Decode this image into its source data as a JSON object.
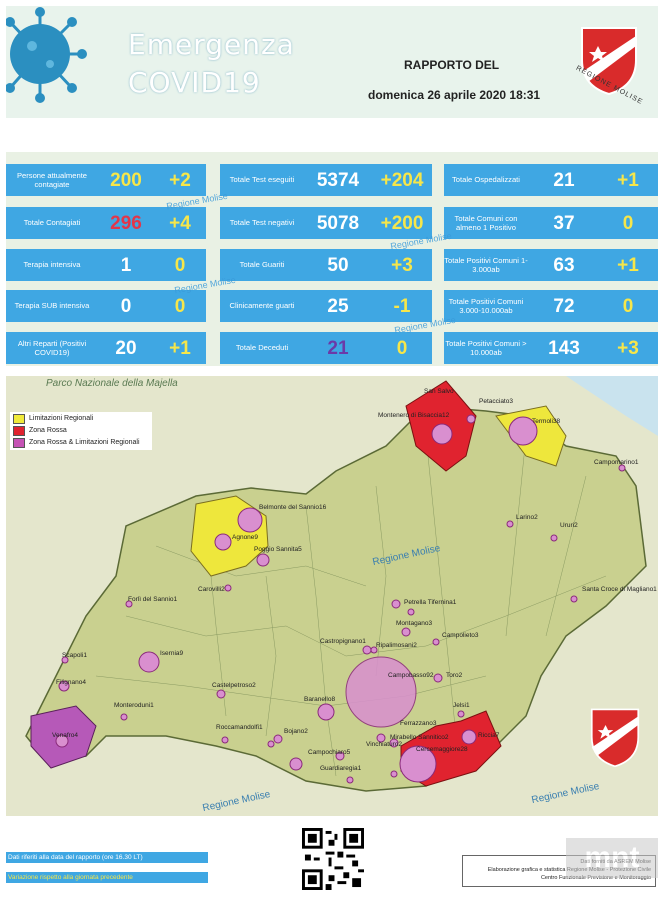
{
  "header": {
    "title_line1": "Emergenza",
    "title_line2": "COVID19",
    "report_label": "RAPPORTO DEL",
    "date": "domenica 26 aprile 2020 18:31",
    "logo_text": "REGIONE MOLISE"
  },
  "stats": {
    "col1": [
      {
        "label": "Persone attualmente contagiate",
        "value": "200",
        "delta": "+2",
        "value_color": "#f6e64a"
      },
      {
        "label": "Totale Contagiati",
        "value": "296",
        "delta": "+4",
        "value_color": "#e2364a"
      },
      {
        "label": "Terapia  intensiva",
        "value": "1",
        "delta": "0",
        "value_color": "#ffffff"
      },
      {
        "label": "Terapia SUB intensiva",
        "value": "0",
        "delta": "0",
        "value_color": "#ffffff"
      },
      {
        "label": "Altri Reparti (Positivi COVID19)",
        "value": "20",
        "delta": "+1",
        "value_color": "#ffffff"
      }
    ],
    "col2": [
      {
        "label": "Totale Test eseguiti",
        "value": "5374",
        "delta": "+204",
        "value_color": "#ffffff"
      },
      {
        "label": "Totale Test negativi",
        "value": "5078",
        "delta": "+200",
        "value_color": "#ffffff"
      },
      {
        "label": "Totale Guariti",
        "value": "50",
        "delta": "+3",
        "value_color": "#ffffff"
      },
      {
        "label": "Clinicamente guarti",
        "value": "25",
        "delta": "-1",
        "value_color": "#ffffff"
      },
      {
        "label": "Totale Deceduti",
        "value": "21",
        "delta": "0",
        "value_color": "#6b3aa8"
      }
    ],
    "col3": [
      {
        "label": "Totale Ospedalizzati",
        "value": "21",
        "delta": "+1",
        "value_color": "#ffffff"
      },
      {
        "label": "Totale Comuni con almeno 1 Positivo",
        "value": "37",
        "delta": "0",
        "value_color": "#ffffff"
      },
      {
        "label": "Totale Positivi Comuni 1-3.000ab",
        "value": "63",
        "delta": "+1",
        "value_color": "#ffffff"
      },
      {
        "label": "Totale Positivi Comuni 3.000-10.000ab",
        "value": "72",
        "delta": "0",
        "value_color": "#ffffff"
      },
      {
        "label": "Totale Positivi Comuni > 10.000ab",
        "value": "143",
        "delta": "+3",
        "value_color": "#ffffff"
      }
    ],
    "watermark": "Regione Molise"
  },
  "map": {
    "park_label": "Parco Nazionale della Majella",
    "legend": [
      {
        "label": "Limitazioni Regionali",
        "color": "#f0ea3a"
      },
      {
        "label": "Zona Rossa",
        "color": "#e0232f"
      },
      {
        "label": "Zona Rossa & Limitazioni Regionali",
        "color": "#c552b5"
      }
    ],
    "watermark": "Regione Molise",
    "places": [
      "San Salvo",
      "Petacciato3",
      "Montenero di Bisaccia12",
      "Termoli38",
      "Campomarino1",
      "Belmonte del Sannio16",
      "Agnone9",
      "Poggio Sannita5",
      "Larino2",
      "Ururi2",
      "Carovilli2",
      "Santa Croce di Magliano1",
      "Forlì del Sannio1",
      "Petrella Tifernina1",
      "Montagano3",
      "Castropignano1",
      "Ripalimosani2",
      "Campolieto3",
      "Scapoli1",
      "Isernia9",
      "Campobasso92",
      "Toro2",
      "Filignano4",
      "Castelpetroso2",
      "Baranello8",
      "Monteroduni1",
      "Jelsi1",
      "Ferrazzano3",
      "Roccamandolfi1",
      "Bojano2",
      "Riccia7",
      "Venafro4",
      "Vinchiaturo2",
      "Mirabello Sannitico2",
      "Cercemaggiore28",
      "Campochiaro5",
      "Guardiaregia1"
    ]
  },
  "footer": {
    "note1": "Dati riferiti alla data del rapporto  (ore 16.30 LT)",
    "note2": "Variazione rispetto alla giornata precedente",
    "credits_line1": "Dati forniti da ASREM Molise",
    "credits_line2": "Elaborazione grafica e statistica Regione Molise - Protezione Civile",
    "credits_line3": "Centro Funzionale Previsione e Monitoraggio",
    "brand": "mnt"
  }
}
